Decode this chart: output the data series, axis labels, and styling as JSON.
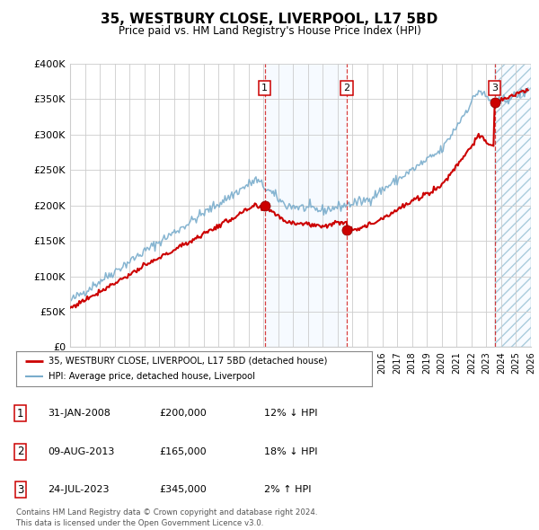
{
  "title": "35, WESTBURY CLOSE, LIVERPOOL, L17 5BD",
  "subtitle": "Price paid vs. HM Land Registry's House Price Index (HPI)",
  "x_start_year": 1995,
  "x_end_year": 2026,
  "y_min": 0,
  "y_max": 400000,
  "y_ticks": [
    0,
    50000,
    100000,
    150000,
    200000,
    250000,
    300000,
    350000,
    400000
  ],
  "y_tick_labels": [
    "£0",
    "£50K",
    "£100K",
    "£150K",
    "£200K",
    "£250K",
    "£300K",
    "£350K",
    "£400K"
  ],
  "sale1_year": 2008.083,
  "sale1_price": 200000,
  "sale2_year": 2013.608,
  "sale2_price": 165000,
  "sale3_year": 2023.558,
  "sale3_price": 345000,
  "legend_entries": [
    {
      "label": "35, WESTBURY CLOSE, LIVERPOOL, L17 5BD (detached house)",
      "color": "#cc0000",
      "lw": 2
    },
    {
      "label": "HPI: Average price, detached house, Liverpool",
      "color": "#7aadcc",
      "lw": 1.2
    }
  ],
  "table_rows": [
    {
      "num": "1",
      "date": "31-JAN-2008",
      "price": "£200,000",
      "hpi": "12% ↓ HPI"
    },
    {
      "num": "2",
      "date": "09-AUG-2013",
      "price": "£165,000",
      "hpi": "18% ↓ HPI"
    },
    {
      "num": "3",
      "date": "24-JUL-2023",
      "price": "£345,000",
      "hpi": "2% ↑ HPI"
    }
  ],
  "footer": "Contains HM Land Registry data © Crown copyright and database right 2024.\nThis data is licensed under the Open Government Licence v3.0.",
  "hpi_color": "#7aadcc",
  "price_color": "#cc0000",
  "bg_color": "#ffffff",
  "grid_color": "#cccccc",
  "sale_marker_color": "#cc0000",
  "vline_color": "#cc0000",
  "shade_color": "#ddeeff",
  "shade_between_color": "#ddeeff"
}
